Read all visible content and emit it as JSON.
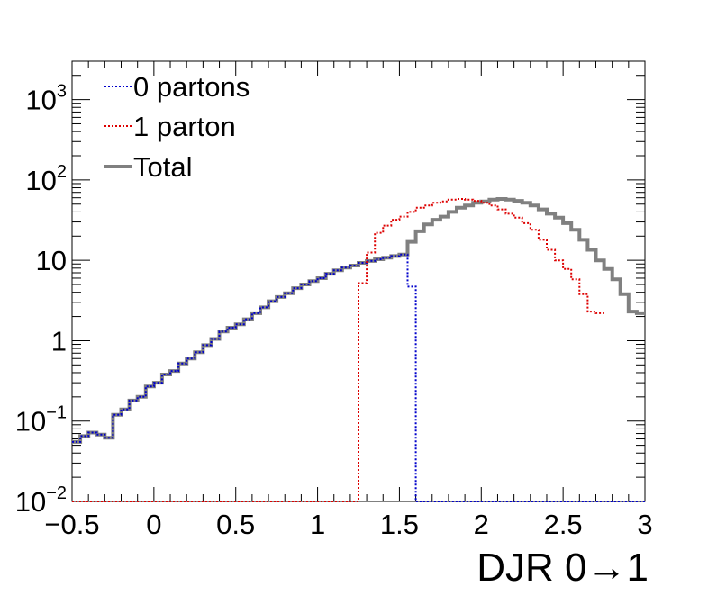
{
  "chart_data": {
    "type": "line",
    "xlabel": "DJR 0→1",
    "ylabel": "",
    "xlim": [
      -0.5,
      3
    ],
    "ylim": [
      0.01,
      3000
    ],
    "yscale": "log",
    "grid": false,
    "legend_position": "top-left",
    "bin_width": 0.05,
    "x_ticks": [
      {
        "value": -0.5,
        "label": "−0.5"
      },
      {
        "value": 0,
        "label": "0"
      },
      {
        "value": 0.5,
        "label": "0.5"
      },
      {
        "value": 1,
        "label": "1"
      },
      {
        "value": 1.5,
        "label": "1.5"
      },
      {
        "value": 2,
        "label": "2"
      },
      {
        "value": 2.5,
        "label": "2.5"
      },
      {
        "value": 3,
        "label": "3"
      }
    ],
    "y_ticks": [
      {
        "value": 0.01,
        "base": "10",
        "exp": "−2"
      },
      {
        "value": 0.1,
        "base": "10",
        "exp": "−1"
      },
      {
        "value": 1,
        "base": "1",
        "exp": ""
      },
      {
        "value": 10,
        "base": "10",
        "exp": ""
      },
      {
        "value": 100,
        "base": "10",
        "exp": "2"
      },
      {
        "value": 1000,
        "base": "10",
        "exp": "3"
      }
    ],
    "series": [
      {
        "name": "0 partons",
        "color": "#0000cc",
        "style": "dotted",
        "x_start": -0.5,
        "values": [
          0.055,
          0.065,
          0.072,
          0.068,
          0.062,
          0.12,
          0.14,
          0.18,
          0.2,
          0.27,
          0.3,
          0.38,
          0.42,
          0.52,
          0.6,
          0.72,
          0.88,
          1.05,
          1.3,
          1.45,
          1.6,
          1.85,
          2.2,
          2.6,
          3.1,
          3.5,
          3.9,
          4.5,
          5.0,
          5.5,
          6.0,
          6.8,
          7.5,
          8.1,
          8.6,
          9.3,
          9.8,
          10.3,
          10.8,
          11.3,
          11.8,
          4.7
        ],
        "after_values": 0.01
      },
      {
        "name": "1 parton",
        "color": "#dd0000",
        "style": "dotted",
        "x_start": 1.25,
        "values": [
          5.2,
          12.5,
          22,
          27,
          32,
          35,
          40,
          45,
          48,
          52,
          54,
          57,
          58,
          57,
          55,
          52,
          48,
          43,
          38,
          34,
          29,
          24,
          18,
          13.5,
          10,
          7.8,
          5.8,
          3.8,
          2.3,
          2.2
        ],
        "before_values": 0.01
      },
      {
        "name": "Total",
        "color": "#808080",
        "style": "solid",
        "x_start": -0.5,
        "values": [
          0.055,
          0.065,
          0.072,
          0.068,
          0.062,
          0.12,
          0.14,
          0.18,
          0.2,
          0.27,
          0.3,
          0.38,
          0.42,
          0.52,
          0.6,
          0.72,
          0.88,
          1.05,
          1.3,
          1.45,
          1.6,
          1.85,
          2.2,
          2.6,
          3.1,
          3.5,
          3.9,
          4.5,
          5.0,
          5.5,
          6.0,
          6.8,
          7.5,
          8.1,
          8.6,
          9.3,
          9.8,
          10.3,
          10.8,
          11.3,
          11.8,
          17,
          23,
          28,
          32,
          35,
          40,
          45,
          48,
          52,
          54,
          57,
          58,
          57,
          55,
          52,
          48,
          43,
          38,
          34,
          29,
          24,
          18,
          13.5,
          10,
          7.8,
          5.8,
          3.8,
          2.3,
          2.2
        ]
      }
    ]
  }
}
